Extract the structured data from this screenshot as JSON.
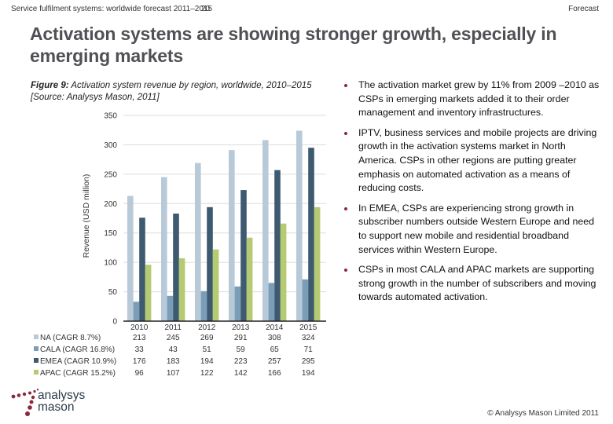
{
  "header": {
    "left": "Service fulfilment systems: worldwide forecast 2011–2015",
    "page_number": "20",
    "right": "Forecast"
  },
  "title": "Activation systems are showing stronger growth, especially in emerging markets",
  "figure_caption": {
    "label": "Figure 9:",
    "text": " Activation system revenue by region, worldwide, 2010–2015 [Source: Analysys Mason, 2011]"
  },
  "bullets": [
    "The activation market grew by 11% from 2009 –2010 as CSPs in emerging markets added it to their order management and inventory infrastructures.",
    "IPTV, business services and mobile projects are driving growth in the activation systems market in North America. CSPs in other regions are putting greater emphasis on automated activation as a means of reducing costs.",
    "In EMEA, CSPs are experiencing strong growth in subscriber numbers outside Western Europe and need to support new mobile and residential broadband services within Western Europe.",
    "CSPs in most CALA and APAC markets are supporting strong growth in the number of subscribers and moving towards automated activation."
  ],
  "logo": {
    "line1": "analysys",
    "line2": "mason",
    "icon": "analysys-mason-dots-logo",
    "color": "#8b2740"
  },
  "copyright": "© Analysys Mason Limited 2011",
  "chart_data": {
    "type": "bar",
    "title": "Activation system revenue by region, worldwide, 2010–2015",
    "xlabel": "",
    "ylabel": "Revenue (USD million)",
    "ylim": [
      0,
      350
    ],
    "yticks": [
      0,
      50,
      100,
      150,
      200,
      250,
      300,
      350
    ],
    "grid": true,
    "legend": "data-table-below",
    "categories": [
      "2010",
      "2011",
      "2012",
      "2013",
      "2014",
      "2015"
    ],
    "series": [
      {
        "name": "NA (CAGR 8.7%)",
        "color": "#b8c9d8",
        "values": [
          213,
          245,
          269,
          291,
          308,
          324
        ]
      },
      {
        "name": "CALA (CAGR 16.8%)",
        "color": "#7a9db8",
        "values": [
          33,
          43,
          51,
          59,
          65,
          71
        ]
      },
      {
        "name": "EMEA (CAGR 10.9%)",
        "color": "#3e5a70",
        "values": [
          176,
          183,
          194,
          223,
          257,
          295
        ]
      },
      {
        "name": "APAC (CAGR 15.2%)",
        "color": "#b5cb72",
        "values": [
          96,
          107,
          122,
          142,
          166,
          194
        ]
      }
    ]
  }
}
